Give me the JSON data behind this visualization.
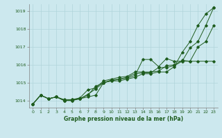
{
  "bg_color": "#cce8ee",
  "line_color": "#1e5c1e",
  "grid_color": "#b0d4da",
  "xlabel": "Graphe pression niveau de la mer (hPa)",
  "ylim": [
    1013.6,
    1019.4
  ],
  "xlim": [
    -0.5,
    23.5
  ],
  "xtick_labels": [
    "0",
    "1",
    "2",
    "3",
    "4",
    "5",
    "6",
    "7",
    "8",
    "9",
    "10",
    "11",
    "12",
    "13",
    "14",
    "15",
    "16",
    "17",
    "18",
    "19",
    "20",
    "21",
    "22",
    "23"
  ],
  "yticks": [
    1014,
    1015,
    1016,
    1017,
    1018,
    1019
  ],
  "series": [
    [
      1013.8,
      1014.3,
      1014.1,
      1014.2,
      1014.0,
      1014.0,
      1014.1,
      1014.2,
      1014.3,
      1015.0,
      1015.1,
      1015.1,
      1015.2,
      1015.3,
      1015.5,
      1015.5,
      1015.6,
      1015.6,
      1015.9,
      1016.7,
      1017.3,
      1018.2,
      1018.85,
      1019.2
    ],
    [
      1013.8,
      1014.3,
      1014.1,
      1014.2,
      1014.0,
      1014.0,
      1014.1,
      1014.3,
      1014.8,
      1015.0,
      1015.15,
      1015.2,
      1015.25,
      1015.4,
      1016.3,
      1016.3,
      1015.9,
      1016.35,
      1016.2,
      1016.2,
      1016.95,
      1017.3,
      1018.2,
      1019.2
    ],
    [
      1013.8,
      1014.3,
      1014.1,
      1014.2,
      1014.0,
      1014.05,
      1014.1,
      1014.35,
      1014.65,
      1015.0,
      1015.1,
      1015.2,
      1015.3,
      1015.5,
      1015.55,
      1015.55,
      1015.85,
      1015.85,
      1015.95,
      1016.2,
      1016.2,
      1017.0,
      1017.3,
      1018.2
    ],
    [
      1013.8,
      1014.3,
      1014.1,
      1014.2,
      1014.05,
      1014.05,
      1014.15,
      1014.6,
      1014.7,
      1015.1,
      1015.2,
      1015.3,
      1015.35,
      1015.6,
      1015.6,
      1015.6,
      1015.65,
      1015.95,
      1016.0,
      1016.25,
      1016.2,
      1016.2,
      1016.2,
      1016.2
    ]
  ]
}
